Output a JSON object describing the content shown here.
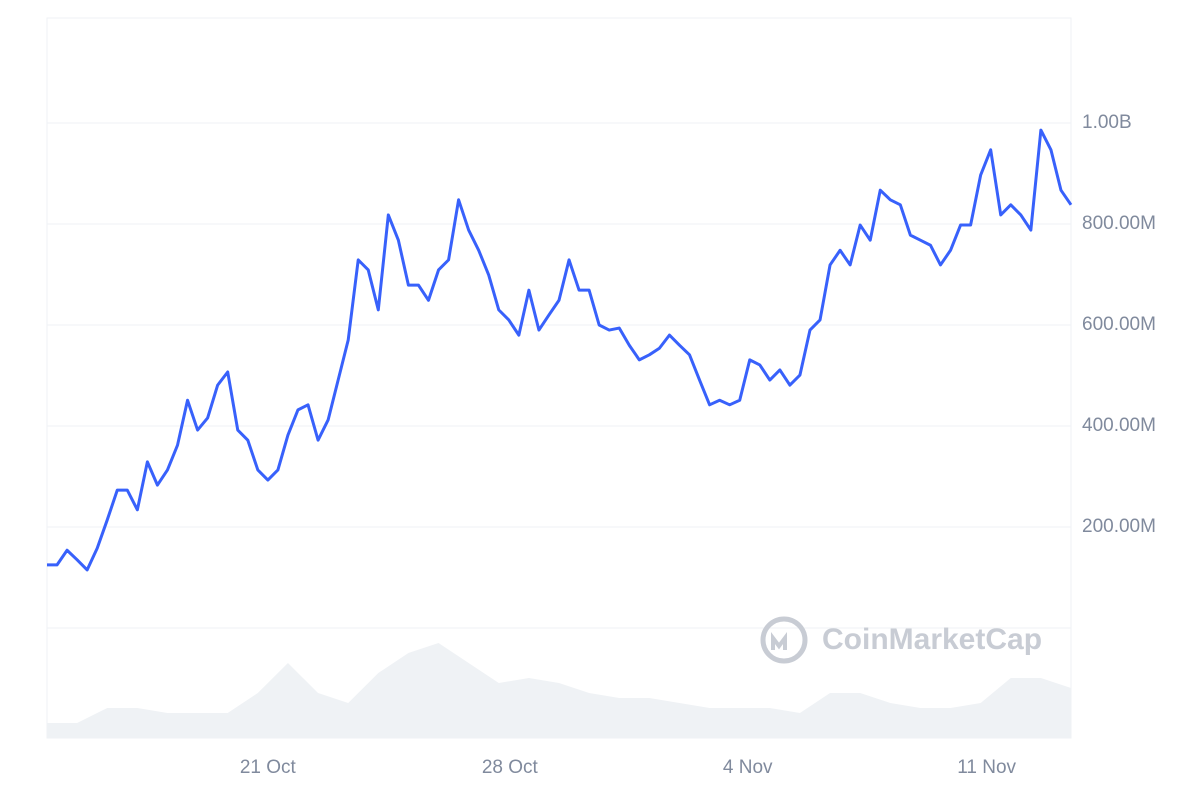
{
  "chart_data": {
    "type": "line",
    "watermark": "CoinMarketCap",
    "xlim": [
      0,
      102
    ],
    "xticks": [
      {
        "value": 22,
        "label": "21 Oct"
      },
      {
        "value": 46.1,
        "label": "28 Oct"
      },
      {
        "value": 69.8,
        "label": "4 Nov"
      },
      {
        "value": 93.6,
        "label": "11 Nov"
      }
    ],
    "ylim": [
      0,
      1208
    ],
    "yticks": [
      {
        "value": 200,
        "label": "200.00M"
      },
      {
        "value": 400,
        "label": "400.00M"
      },
      {
        "value": 600,
        "label": "600.00M"
      },
      {
        "value": 800,
        "label": "800.00M"
      },
      {
        "value": 1000,
        "label": "1.00B"
      }
    ],
    "grid": true,
    "series": [
      {
        "color": "#3861fb",
        "values": [
          125,
          125,
          154,
          135,
          115,
          158,
          214,
          273,
          273,
          234,
          329,
          283,
          313,
          362,
          451,
          392,
          416,
          481,
          507,
          392,
          372,
          313,
          293,
          313,
          382,
          432,
          442,
          372,
          412,
          491,
          570,
          729,
          709,
          630,
          818,
          768,
          679,
          679,
          649,
          709,
          729,
          848,
          788,
          748,
          699,
          630,
          610,
          580,
          669,
          590,
          620,
          649,
          729,
          669,
          669,
          600,
          590,
          594,
          560,
          531,
          541,
          554,
          580,
          560,
          541,
          491,
          442,
          451,
          442,
          451,
          531,
          521,
          491,
          511,
          481,
          501,
          590,
          610,
          719,
          748,
          719,
          798,
          768,
          867,
          848,
          838,
          778,
          768,
          758,
          719,
          748,
          798,
          798,
          897,
          947,
          818,
          838,
          818,
          788,
          986,
          947,
          867,
          838
        ]
      }
    ],
    "volume": {
      "color": "#eff2f5",
      "ylim": [
        0,
        110
      ],
      "values": [
        15,
        15,
        30,
        30,
        25,
        25,
        25,
        45,
        75,
        45,
        35,
        65,
        85,
        95,
        75,
        55,
        60,
        55,
        45,
        40,
        40,
        35,
        30,
        30,
        30,
        25,
        45,
        45,
        35,
        30,
        30,
        35,
        60,
        60,
        50
      ]
    }
  }
}
